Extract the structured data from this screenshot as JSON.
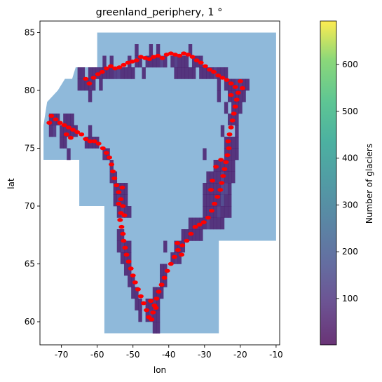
{
  "chart_data": {
    "type": "heatmap",
    "title": "greenland_periphery, 1 °",
    "xlabel": "lon",
    "ylabel": "lat",
    "xlim": [
      -76,
      -9
    ],
    "ylim": [
      58,
      86
    ],
    "x_ticks": [
      -70,
      -60,
      -50,
      -40,
      -30,
      -20,
      -10
    ],
    "y_ticks": [
      60,
      65,
      70,
      75,
      80,
      85
    ],
    "grid": false,
    "region_outline": {
      "color": "#8fb9da",
      "vertices": [
        [
          -60,
          85
        ],
        [
          -10,
          85
        ],
        [
          -10,
          67
        ],
        [
          -26,
          67
        ],
        [
          -26,
          59
        ],
        [
          -58,
          59
        ],
        [
          -58,
          70
        ],
        [
          -65,
          70
        ],
        [
          -65,
          74
        ],
        [
          -75,
          74
        ],
        [
          -75,
          77
        ],
        [
          -74,
          79
        ],
        [
          -71,
          80
        ],
        [
          -69,
          81
        ],
        [
          -67,
          81
        ],
        [
          -66,
          82
        ],
        [
          -60,
          82
        ]
      ]
    },
    "cells_lat_lon": [
      [
        83.5,
        -49
      ],
      [
        83.5,
        -45
      ],
      [
        83.5,
        -43
      ],
      [
        83.5,
        -34
      ],
      [
        82.5,
        -58
      ],
      [
        82.5,
        -56
      ],
      [
        82.5,
        -51
      ],
      [
        82.5,
        -49
      ],
      [
        82.5,
        -48
      ],
      [
        82.5,
        -46
      ],
      [
        82.5,
        -45
      ],
      [
        82.5,
        -44
      ],
      [
        82.5,
        -43
      ],
      [
        82.5,
        -42
      ],
      [
        82.5,
        -41
      ],
      [
        82.5,
        -39
      ],
      [
        82.5,
        -38
      ],
      [
        82.5,
        -37
      ],
      [
        82.5,
        -36
      ],
      [
        82.5,
        -35
      ],
      [
        82.5,
        -33
      ],
      [
        82.5,
        -32
      ],
      [
        82.5,
        -31
      ],
      [
        81.5,
        -65
      ],
      [
        81.5,
        -64
      ],
      [
        81.5,
        -62
      ],
      [
        81.5,
        -61
      ],
      [
        81.5,
        -60
      ],
      [
        81.5,
        -59
      ],
      [
        81.5,
        -58
      ],
      [
        81.5,
        -57
      ],
      [
        81.5,
        -56
      ],
      [
        81.5,
        -55
      ],
      [
        81.5,
        -54
      ],
      [
        81.5,
        -53
      ],
      [
        81.5,
        -52
      ],
      [
        81.5,
        -51
      ],
      [
        81.5,
        -50
      ],
      [
        81.5,
        -47
      ],
      [
        81.5,
        -38
      ],
      [
        81.5,
        -37
      ],
      [
        81.5,
        -36
      ],
      [
        81.5,
        -35
      ],
      [
        81.5,
        -34
      ],
      [
        81.5,
        -33
      ],
      [
        81.5,
        -31
      ],
      [
        81.5,
        -30
      ],
      [
        81.5,
        -29
      ],
      [
        81.5,
        -28
      ],
      [
        81.5,
        -27
      ],
      [
        81.5,
        -26
      ],
      [
        81.5,
        -25
      ],
      [
        81.5,
        -24
      ],
      [
        80.5,
        -65
      ],
      [
        80.5,
        -64
      ],
      [
        80.5,
        -63
      ],
      [
        80.5,
        -62
      ],
      [
        80.5,
        -61
      ],
      [
        80.5,
        -59
      ],
      [
        80.5,
        -26
      ],
      [
        80.5,
        -24
      ],
      [
        80.5,
        -23
      ],
      [
        80.5,
        -22
      ],
      [
        80.5,
        -21
      ],
      [
        80.5,
        -20
      ],
      [
        80.5,
        -19
      ],
      [
        80.5,
        -18
      ],
      [
        79.5,
        -62
      ],
      [
        79.5,
        -26
      ],
      [
        79.5,
        -23
      ],
      [
        79.5,
        -22
      ],
      [
        79.5,
        -21
      ],
      [
        79.5,
        -20
      ],
      [
        79.5,
        -19
      ],
      [
        78.5,
        -24
      ],
      [
        78.5,
        -22
      ],
      [
        78.5,
        -21
      ],
      [
        78.5,
        -20
      ],
      [
        77.5,
        -73
      ],
      [
        77.5,
        -72
      ],
      [
        77.5,
        -71
      ],
      [
        77.5,
        -69
      ],
      [
        77.5,
        -68
      ],
      [
        77.5,
        -67
      ],
      [
        77.5,
        -23
      ],
      [
        77.5,
        -22
      ],
      [
        77.5,
        -21
      ],
      [
        76.5,
        -73
      ],
      [
        76.5,
        -72
      ],
      [
        76.5,
        -70
      ],
      [
        76.5,
        -69
      ],
      [
        76.5,
        -68
      ],
      [
        76.5,
        -67
      ],
      [
        76.5,
        -66
      ],
      [
        76.5,
        -62
      ],
      [
        76.5,
        -25
      ],
      [
        76.5,
        -21
      ],
      [
        75.5,
        -70
      ],
      [
        75.5,
        -69
      ],
      [
        75.5,
        -63
      ],
      [
        75.5,
        -62
      ],
      [
        75.5,
        -61
      ],
      [
        75.5,
        -60
      ],
      [
        75.5,
        -24
      ],
      [
        75.5,
        -23
      ],
      [
        75.5,
        -22
      ],
      [
        75.5,
        -21
      ],
      [
        74.5,
        -68
      ],
      [
        74.5,
        -58
      ],
      [
        74.5,
        -57
      ],
      [
        74.5,
        -30
      ],
      [
        74.5,
        -24
      ],
      [
        74.5,
        -23
      ],
      [
        74.5,
        -22
      ],
      [
        74.5,
        -21
      ],
      [
        73.5,
        -56
      ],
      [
        73.5,
        -27
      ],
      [
        73.5,
        -26
      ],
      [
        73.5,
        -25
      ],
      [
        73.5,
        -24
      ],
      [
        73.5,
        -23
      ],
      [
        73.5,
        -22
      ],
      [
        72.5,
        -56
      ],
      [
        72.5,
        -55
      ],
      [
        72.5,
        -29
      ],
      [
        72.5,
        -28
      ],
      [
        72.5,
        -27
      ],
      [
        72.5,
        -26
      ],
      [
        72.5,
        -25
      ],
      [
        72.5,
        -24
      ],
      [
        72.5,
        -23
      ],
      [
        72.5,
        -22
      ],
      [
        71.5,
        -55
      ],
      [
        71.5,
        -54
      ],
      [
        71.5,
        -53
      ],
      [
        71.5,
        -52
      ],
      [
        71.5,
        -30
      ],
      [
        71.5,
        -29
      ],
      [
        71.5,
        -28
      ],
      [
        71.5,
        -27
      ],
      [
        71.5,
        -26
      ],
      [
        71.5,
        -25
      ],
      [
        71.5,
        -24
      ],
      [
        71.5,
        -23
      ],
      [
        70.5,
        -55
      ],
      [
        70.5,
        -54
      ],
      [
        70.5,
        -53
      ],
      [
        70.5,
        -52
      ],
      [
        70.5,
        -30
      ],
      [
        70.5,
        -29
      ],
      [
        70.5,
        -28
      ],
      [
        70.5,
        -27
      ],
      [
        70.5,
        -26
      ],
      [
        70.5,
        -25
      ],
      [
        70.5,
        -24
      ],
      [
        70.5,
        -23
      ],
      [
        69.5,
        -54
      ],
      [
        69.5,
        -53
      ],
      [
        69.5,
        -52
      ],
      [
        69.5,
        -51
      ],
      [
        69.5,
        -30
      ],
      [
        69.5,
        -29
      ],
      [
        69.5,
        -28
      ],
      [
        69.5,
        -27
      ],
      [
        69.5,
        -26
      ],
      [
        69.5,
        -25
      ],
      [
        69.5,
        -24
      ],
      [
        69.5,
        -23
      ],
      [
        68.5,
        -34
      ],
      [
        68.5,
        -33
      ],
      [
        68.5,
        -32
      ],
      [
        68.5,
        -31
      ],
      [
        68.5,
        -30
      ],
      [
        68.5,
        -29
      ],
      [
        68.5,
        -28
      ],
      [
        68.5,
        -27
      ],
      [
        68.5,
        -26
      ],
      [
        68.5,
        -25
      ],
      [
        67.5,
        -54
      ],
      [
        67.5,
        -53
      ],
      [
        67.5,
        -36
      ],
      [
        67.5,
        -35
      ],
      [
        67.5,
        -34
      ],
      [
        67.5,
        -33
      ],
      [
        67.5,
        -32
      ],
      [
        67.5,
        -31
      ],
      [
        66.5,
        -54
      ],
      [
        66.5,
        -53
      ],
      [
        66.5,
        -52
      ],
      [
        66.5,
        -51
      ],
      [
        66.5,
        -41
      ],
      [
        66.5,
        -38
      ],
      [
        66.5,
        -37
      ],
      [
        66.5,
        -36
      ],
      [
        65.5,
        -53
      ],
      [
        65.5,
        -52
      ],
      [
        65.5,
        -51
      ],
      [
        65.5,
        -39
      ],
      [
        65.5,
        -38
      ],
      [
        65.5,
        -37
      ],
      [
        64.5,
        -52
      ],
      [
        64.5,
        -51
      ],
      [
        64.5,
        -42
      ],
      [
        64.5,
        -41
      ],
      [
        63.5,
        -51
      ],
      [
        63.5,
        -50
      ],
      [
        63.5,
        -42
      ],
      [
        63.5,
        -41
      ],
      [
        62.5,
        -50
      ],
      [
        62.5,
        -49
      ],
      [
        62.5,
        -44
      ],
      [
        62.5,
        -43
      ],
      [
        62.5,
        -42
      ],
      [
        61.5,
        -49
      ],
      [
        61.5,
        -48
      ],
      [
        61.5,
        -46
      ],
      [
        61.5,
        -45
      ],
      [
        61.5,
        -44
      ],
      [
        61.5,
        -43
      ],
      [
        60.5,
        -48
      ],
      [
        60.5,
        -46
      ],
      [
        60.5,
        -45
      ],
      [
        60.5,
        -44
      ],
      [
        60.5,
        -43
      ],
      [
        59.5,
        -44
      ],
      [
        59.5,
        -43
      ]
    ],
    "cell_values_lat_lon": [
      [
        82.5,
        -42,
        95
      ],
      [
        82.5,
        -38,
        85
      ],
      [
        81.5,
        -55,
        80
      ],
      [
        81.5,
        -54,
        90
      ],
      [
        81.5,
        -27,
        80
      ],
      [
        80.5,
        -21,
        75
      ],
      [
        80.5,
        -20,
        70
      ],
      [
        76.5,
        -72,
        80
      ],
      [
        72.5,
        -25,
        90
      ],
      [
        71.5,
        -25,
        110
      ],
      [
        71.5,
        -24,
        95
      ],
      [
        70.5,
        -25,
        120
      ],
      [
        69.5,
        -26,
        85
      ],
      [
        68.5,
        -29,
        90
      ],
      [
        70.5,
        -54,
        75
      ],
      [
        69.5,
        -53,
        80
      ],
      [
        66.5,
        -53,
        70
      ],
      [
        65.5,
        -38,
        65
      ],
      [
        61.5,
        -44,
        70
      ],
      [
        60.5,
        -45,
        75
      ]
    ],
    "cell_default_value": 45,
    "glacier_outline_color": "#ff0000",
    "glacier_points_lon_lat": [
      [
        -63.2,
        81.0
      ],
      [
        -62.2,
        80.6
      ],
      [
        -61.0,
        81.1
      ],
      [
        -59.8,
        81.4
      ],
      [
        -58.6,
        81.6
      ],
      [
        -57.4,
        81.9
      ],
      [
        -56.2,
        82.1
      ],
      [
        -55.0,
        81.9
      ],
      [
        -53.8,
        82.0
      ],
      [
        -52.6,
        82.2
      ],
      [
        -51.4,
        82.4
      ],
      [
        -50.2,
        82.5
      ],
      [
        -49.0,
        82.6
      ],
      [
        -47.8,
        82.9
      ],
      [
        -46.6,
        82.8
      ],
      [
        -45.4,
        82.7
      ],
      [
        -44.2,
        82.9
      ],
      [
        -43.0,
        83.0
      ],
      [
        -41.8,
        82.8
      ],
      [
        -40.6,
        83.1
      ],
      [
        -39.4,
        83.2
      ],
      [
        -38.2,
        83.1
      ],
      [
        -37.0,
        83.0
      ],
      [
        -35.8,
        83.2
      ],
      [
        -34.6,
        83.1
      ],
      [
        -33.4,
        82.9
      ],
      [
        -32.2,
        82.6
      ],
      [
        -31.0,
        82.4
      ],
      [
        -29.8,
        82.1
      ],
      [
        -28.6,
        81.8
      ],
      [
        -27.4,
        81.6
      ],
      [
        -26.2,
        81.3
      ],
      [
        -25.0,
        81.1
      ],
      [
        -23.8,
        80.9
      ],
      [
        -22.6,
        80.6
      ],
      [
        -21.4,
        80.3
      ],
      [
        -20.6,
        79.8
      ],
      [
        -21.0,
        79.2
      ],
      [
        -21.4,
        78.6
      ],
      [
        -21.8,
        78.0
      ],
      [
        -22.2,
        77.4
      ],
      [
        -22.6,
        76.8
      ],
      [
        -23.0,
        76.2
      ],
      [
        -23.4,
        75.6
      ],
      [
        -23.2,
        75.0
      ],
      [
        -23.6,
        74.4
      ],
      [
        -24.0,
        73.8
      ],
      [
        -24.4,
        73.2
      ],
      [
        -24.8,
        72.6
      ],
      [
        -25.2,
        72.0
      ],
      [
        -25.6,
        71.4
      ],
      [
        -26.4,
        70.8
      ],
      [
        -27.2,
        70.2
      ],
      [
        -28.0,
        69.6
      ],
      [
        -29.0,
        69.0
      ],
      [
        -30.2,
        68.6
      ],
      [
        -31.4,
        68.4
      ],
      [
        -32.6,
        68.2
      ],
      [
        -33.8,
        67.6
      ],
      [
        -35.0,
        67.0
      ],
      [
        -36.2,
        66.6
      ],
      [
        -37.4,
        66.2
      ],
      [
        -38.4,
        65.6
      ],
      [
        -39.4,
        65.0
      ],
      [
        -40.4,
        64.4
      ],
      [
        -41.2,
        63.8
      ],
      [
        -42.0,
        63.2
      ],
      [
        -42.8,
        62.6
      ],
      [
        -43.4,
        62.0
      ],
      [
        -44.0,
        61.4
      ],
      [
        -44.4,
        60.8
      ],
      [
        -44.8,
        60.2
      ],
      [
        -45.6,
        60.4
      ],
      [
        -46.2,
        61.0
      ],
      [
        -47.0,
        61.6
      ],
      [
        -47.8,
        62.2
      ],
      [
        -48.6,
        62.8
      ],
      [
        -49.4,
        63.4
      ],
      [
        -50.0,
        64.0
      ],
      [
        -50.6,
        64.6
      ],
      [
        -51.2,
        65.2
      ],
      [
        -51.8,
        65.8
      ],
      [
        -52.2,
        66.4
      ],
      [
        -52.6,
        67.0
      ],
      [
        -52.8,
        67.6
      ],
      [
        -53.2,
        68.2
      ],
      [
        -53.6,
        68.8
      ],
      [
        -53.4,
        69.4
      ],
      [
        -52.8,
        70.0
      ],
      [
        -53.4,
        70.6
      ],
      [
        -54.0,
        71.2
      ],
      [
        -54.6,
        71.8
      ],
      [
        -55.2,
        72.4
      ],
      [
        -55.6,
        73.0
      ],
      [
        -56.0,
        73.6
      ],
      [
        -56.6,
        74.2
      ],
      [
        -57.4,
        74.6
      ],
      [
        -58.4,
        75.0
      ],
      [
        -59.6,
        75.4
      ],
      [
        -60.8,
        75.6
      ],
      [
        -62.0,
        75.6
      ],
      [
        -63.2,
        75.8
      ],
      [
        -64.4,
        76.2
      ],
      [
        -65.6,
        76.4
      ],
      [
        -66.8,
        76.6
      ],
      [
        -68.0,
        76.8
      ],
      [
        -69.2,
        77.0
      ],
      [
        -70.4,
        77.2
      ],
      [
        -71.6,
        77.5
      ],
      [
        -72.8,
        77.8
      ],
      [
        -73.4,
        77.2
      ],
      [
        -68.6,
        76.2
      ],
      [
        -67.4,
        75.9
      ],
      [
        -27.8,
        72.2
      ],
      [
        -28.2,
        71.4
      ],
      [
        -26.8,
        73.4
      ],
      [
        -25.4,
        74.0
      ],
      [
        -22.6,
        79.6
      ],
      [
        -20.0,
        80.8
      ],
      [
        -19.4,
        80.2
      ],
      [
        -53.0,
        71.6
      ],
      [
        -52.4,
        69.2
      ],
      [
        -54.0,
        70.2
      ],
      [
        -37.6,
        66.8
      ],
      [
        -36.4,
        65.8
      ],
      [
        -43.6,
        61.2
      ],
      [
        -45.0,
        61.8
      ]
    ],
    "colorbar": {
      "label": "Number of glaciers",
      "colormap": "viridis",
      "alpha": 0.8,
      "range": [
        1,
        693
      ],
      "ticks": [
        100,
        200,
        300,
        400,
        500,
        600
      ]
    }
  }
}
